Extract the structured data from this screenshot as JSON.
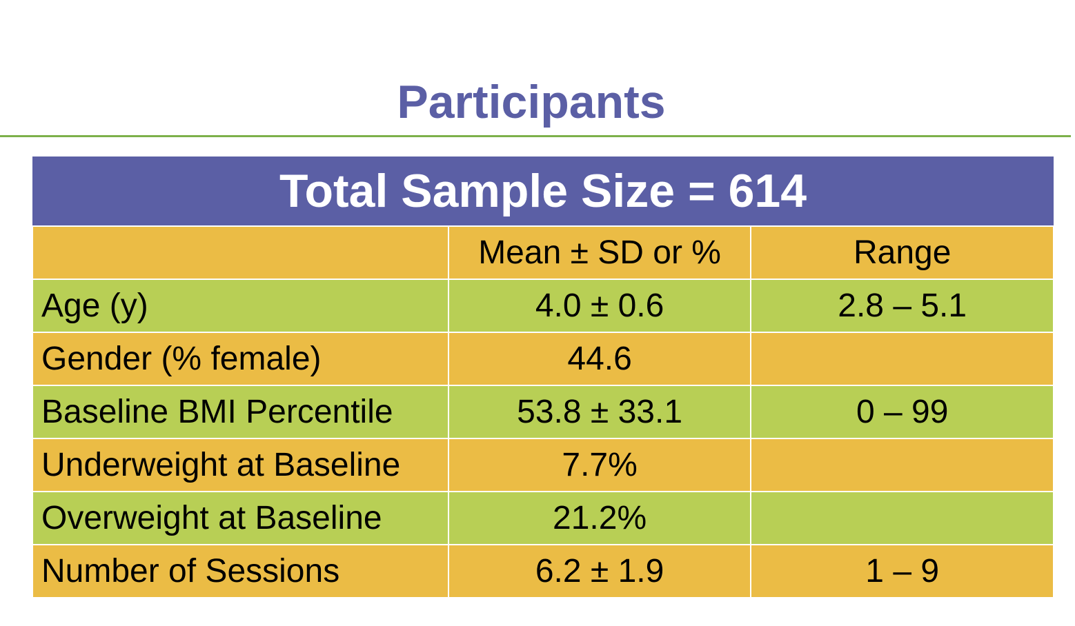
{
  "title": "Participants",
  "table": {
    "banner": "Total Sample Size = 614",
    "headers": {
      "label": "",
      "mean": "Mean ± SD or %",
      "range": "Range"
    },
    "rows": [
      {
        "label": "Age (y)",
        "mean": "4.0 ± 0.6",
        "range": "2.8 – 5.1"
      },
      {
        "label": "Gender (% female)",
        "mean": "44.6",
        "range": ""
      },
      {
        "label": "Baseline BMI Percentile",
        "mean": "53.8 ± 33.1",
        "range": "0 – 99"
      },
      {
        "label": "Underweight at Baseline",
        "mean": "7.7%",
        "range": ""
      },
      {
        "label": "Overweight at Baseline",
        "mean": "21.2%",
        "range": ""
      },
      {
        "label": "Number of Sessions",
        "mean": "6.2 ± 1.9",
        "range": "1 – 9"
      }
    ]
  },
  "colors": {
    "title": "#5b5fa5",
    "banner_bg": "#5b5fa5",
    "rule": "#7cb04a",
    "row_orange": "#ebbc45",
    "row_green": "#b8cf55"
  }
}
